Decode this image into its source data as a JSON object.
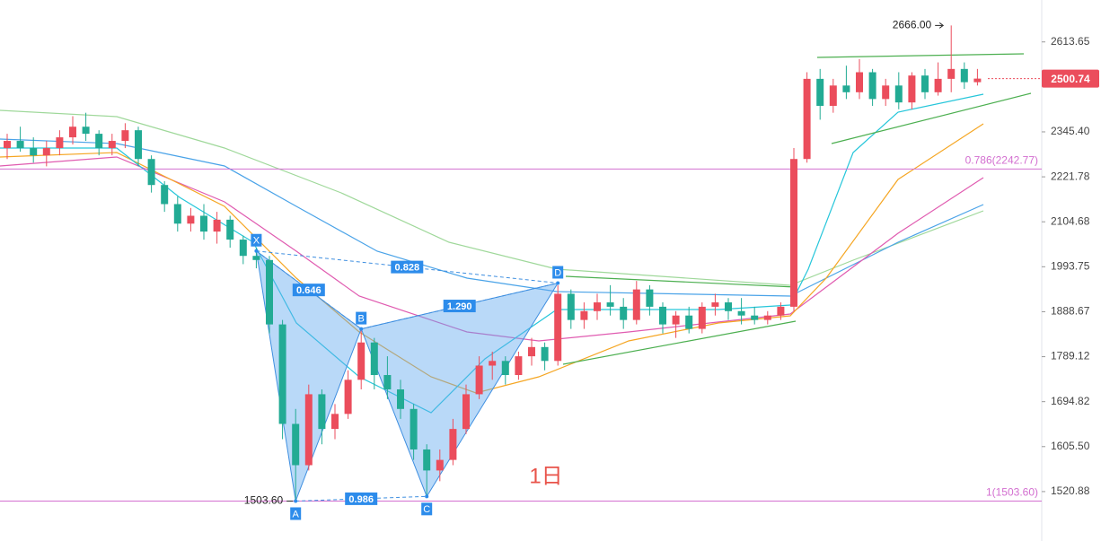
{
  "chart_data": {
    "type": "candlestick",
    "log_scale": true,
    "ylim": [
      1433,
      2749
    ],
    "yticks": [
      2613.65,
      {
        "value": 2345.4,
        "label": "2345.40"
      },
      2221.78,
      2104.68,
      1993.75,
      1888.67,
      1789.12,
      1694.82,
      {
        "value": 1605.5,
        "label": "1605.50"
      },
      1520.88
    ],
    "up_color": "#eb4d5c",
    "down_color": "#22ab94",
    "open": [
      2300,
      2320,
      2300,
      2280,
      2300,
      2330,
      2360,
      2340,
      2300,
      2320,
      2350,
      2270,
      2200,
      2150,
      2100,
      2120,
      2080,
      2110,
      2060,
      2020,
      2010,
      1860,
      1650,
      1570,
      1710,
      1640,
      1670,
      1740,
      1820,
      1750,
      1720,
      1680,
      1600,
      1560,
      1580,
      1640,
      1710,
      1770,
      1780,
      1750,
      1790,
      1810,
      1780,
      1930,
      1870,
      1890,
      1910,
      1900,
      1870,
      1940,
      1900,
      1860,
      1880,
      1850,
      1900,
      1910,
      1890,
      1880,
      1870,
      1880,
      1900,
      2270,
      2500,
      2420,
      2480,
      2460,
      2520,
      2440,
      2480,
      2430,
      2510,
      2460,
      2500,
      2530,
      2490
    ],
    "high": [
      2340,
      2360,
      2330,
      2320,
      2350,
      2390,
      2400,
      2350,
      2340,
      2370,
      2360,
      2280,
      2210,
      2170,
      2140,
      2150,
      2130,
      2120,
      2070,
      2040,
      2020,
      1870,
      1680,
      1730,
      1720,
      1690,
      1760,
      1850,
      1830,
      1790,
      1740,
      1690,
      1610,
      1600,
      1660,
      1730,
      1790,
      1800,
      1790,
      1800,
      1830,
      1820,
      1950,
      1940,
      1910,
      1930,
      1950,
      1920,
      1960,
      1950,
      1910,
      1890,
      1900,
      1910,
      1930,
      1920,
      1920,
      1900,
      1890,
      1910,
      2300,
      2520,
      2530,
      2500,
      2540,
      2560,
      2530,
      2500,
      2520,
      2520,
      2530,
      2550,
      2666,
      2550,
      2530
    ],
    "low": [
      2270,
      2290,
      2260,
      2250,
      2280,
      2310,
      2320,
      2280,
      2280,
      2300,
      2250,
      2180,
      2130,
      2080,
      2080,
      2060,
      2050,
      2040,
      2000,
      1990,
      1840,
      1620,
      1503.6,
      1560,
      1610,
      1620,
      1660,
      1720,
      1720,
      1700,
      1660,
      1580,
      1512,
      1540,
      1570,
      1630,
      1700,
      1740,
      1730,
      1740,
      1770,
      1760,
      1770,
      1850,
      1850,
      1870,
      1880,
      1850,
      1860,
      1880,
      1840,
      1830,
      1840,
      1840,
      1880,
      1870,
      1860,
      1860,
      1860,
      1870,
      1890,
      2260,
      2380,
      2400,
      2440,
      2440,
      2420,
      2420,
      2410,
      2410,
      2440,
      2450,
      2460,
      2470,
      2480
    ],
    "close": [
      2320,
      2300,
      2280,
      2300,
      2330,
      2360,
      2340,
      2300,
      2320,
      2350,
      2270,
      2200,
      2150,
      2100,
      2120,
      2080,
      2110,
      2060,
      2020,
      2010,
      1860,
      1650,
      1570,
      1710,
      1640,
      1670,
      1740,
      1820,
      1750,
      1720,
      1680,
      1600,
      1560,
      1580,
      1640,
      1710,
      1770,
      1780,
      1750,
      1790,
      1810,
      1780,
      1930,
      1870,
      1890,
      1910,
      1900,
      1870,
      1940,
      1900,
      1860,
      1880,
      1850,
      1900,
      1910,
      1890,
      1880,
      1870,
      1880,
      1900,
      2270,
      2500,
      2420,
      2480,
      2460,
      2520,
      2440,
      2480,
      2430,
      2510,
      2460,
      2500,
      2530,
      2490,
      2500.74
    ],
    "last_price": 2500.74,
    "high_annotation": {
      "index": 72,
      "value": 2666,
      "label": "2666.00"
    },
    "low_annotation": {
      "index": 22,
      "value": 1503.6,
      "label": "1503.60"
    },
    "fib_levels": [
      {
        "value": 2242.77,
        "label": "0.786(2242.77)"
      },
      {
        "value": 1503.6,
        "label": "1(1503.60)"
      }
    ],
    "pattern": {
      "points": [
        {
          "name": "X",
          "index": 19,
          "price": 2032
        },
        {
          "name": "A",
          "index": 22,
          "price": 1503.6
        },
        {
          "name": "B",
          "index": 27,
          "price": 1850
        },
        {
          "name": "C",
          "index": 32,
          "price": 1512
        },
        {
          "name": "D",
          "index": 42,
          "price": 1955
        }
      ],
      "ratios": [
        {
          "from": "X",
          "to": "B",
          "label": "0.646"
        },
        {
          "from": "X",
          "to": "D",
          "label": "0.828"
        },
        {
          "from": "B",
          "to": "D",
          "label": "1.290"
        },
        {
          "from": "A",
          "to": "C",
          "label": "0.986"
        }
      ]
    },
    "annotation": "1日"
  }
}
